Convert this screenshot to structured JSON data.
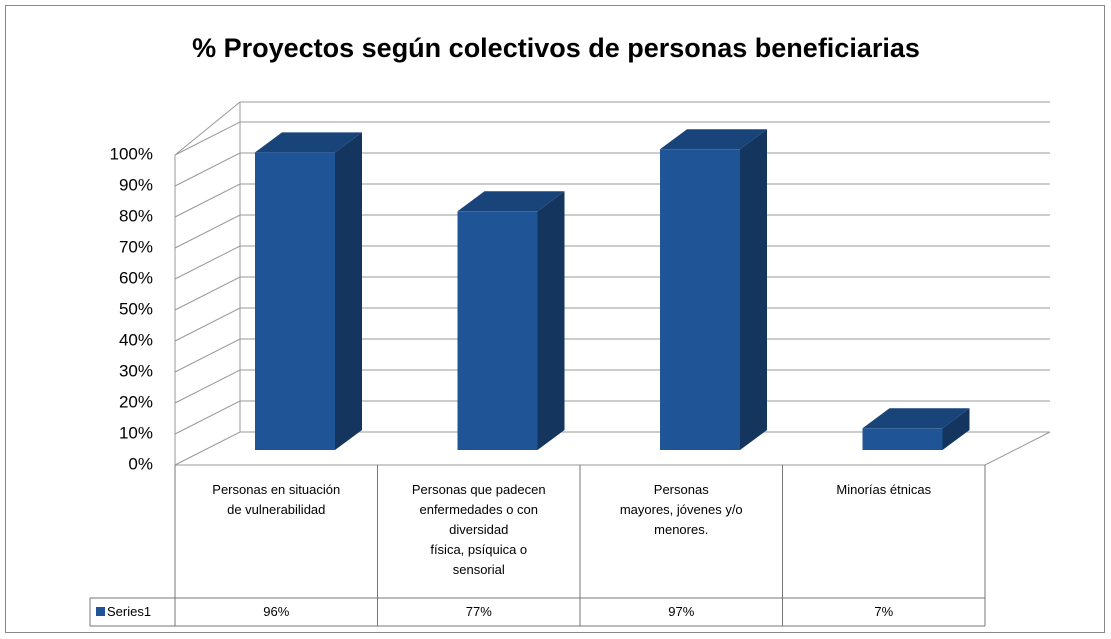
{
  "chart_data": {
    "type": "bar3d",
    "title": "% Proyectos según colectivos de personas beneficiarias",
    "categories": [
      "Personas en situación\nde vulnerabilidad",
      "Personas que padecen\nenfermedades o con\ndiversidad\nfísica, psíquica o\nsensorial",
      "Personas\nmayores, jóvenes y/o\nmenores.",
      "Minorías étnicas"
    ],
    "series": [
      {
        "name": "Series1",
        "color": "#1f5597",
        "values": [
          96,
          77,
          97,
          7
        ],
        "value_labels": [
          "96%",
          "77%",
          "97%",
          "7%"
        ]
      }
    ],
    "ylim": [
      0,
      100
    ],
    "yticks": [
      {
        "value": 0,
        "label": "0%"
      },
      {
        "value": 10,
        "label": "10%"
      },
      {
        "value": 20,
        "label": "20%"
      },
      {
        "value": 30,
        "label": "30%"
      },
      {
        "value": 40,
        "label": "40%"
      },
      {
        "value": 50,
        "label": "50%"
      },
      {
        "value": 60,
        "label": "60%"
      },
      {
        "value": 70,
        "label": "70%"
      },
      {
        "value": 80,
        "label": "80%"
      },
      {
        "value": 90,
        "label": "90%"
      },
      {
        "value": 100,
        "label": "100%"
      }
    ],
    "grid": true,
    "data_table": true
  }
}
